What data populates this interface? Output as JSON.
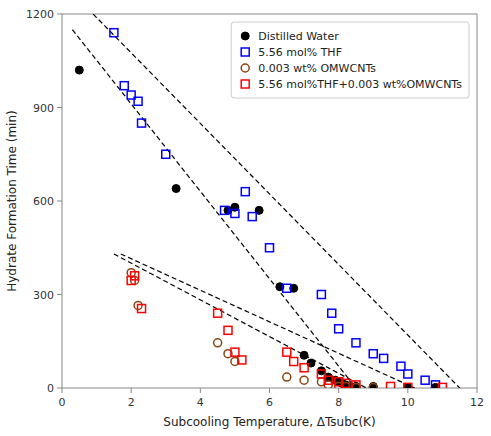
{
  "chart_data": {
    "type": "scatter",
    "title": "",
    "xlabel": "Subcooling Temperature, ΔTsubc(K)",
    "ylabel": "Hydrate Formation Time (min)",
    "xlim": [
      0,
      12
    ],
    "ylim": [
      0,
      1200
    ],
    "xticks": [
      0,
      2,
      4,
      6,
      8,
      10,
      12
    ],
    "yticks": [
      0,
      300,
      600,
      900,
      1200
    ],
    "grid": false,
    "legend": "upper-right",
    "series": [
      {
        "name": "Distilled Water",
        "color": "#000000",
        "marker": "filled-circle",
        "x": [
          0.5,
          3.3,
          4.8,
          5.0,
          5.7,
          6.3,
          6.7,
          7.0,
          7.2,
          7.5,
          7.7,
          7.9,
          8.0,
          8.1,
          8.2,
          8.3,
          8.5,
          9.0,
          10.0,
          10.8
        ],
        "values": [
          1020,
          640,
          570,
          580,
          570,
          325,
          320,
          105,
          80,
          55,
          35,
          25,
          20,
          15,
          10,
          5,
          5,
          5,
          2,
          2
        ],
        "trend_x": [
          0.3,
          8.5
        ],
        "trend_y": [
          1150,
          0
        ]
      },
      {
        "name": "5.56 mol% THF",
        "color": "#0000FF",
        "marker": "open-square",
        "x": [
          1.5,
          1.8,
          2.0,
          2.2,
          2.3,
          3.0,
          4.7,
          5.0,
          5.3,
          5.5,
          6.0,
          6.5,
          7.5,
          7.8,
          8.0,
          8.5,
          9.0,
          9.3,
          9.8,
          10.0,
          10.5,
          10.8
        ],
        "values": [
          1140,
          970,
          940,
          920,
          850,
          750,
          570,
          560,
          630,
          550,
          450,
          320,
          300,
          240,
          190,
          145,
          110,
          95,
          70,
          45,
          25,
          10
        ],
        "trend_x": [
          0.9,
          11.5
        ],
        "trend_y": [
          1200,
          0
        ]
      },
      {
        "name": "0.003 wt% OMWCNTs",
        "color": "#8B4513",
        "marker": "open-circle",
        "x": [
          2.0,
          2.1,
          2.2,
          4.5,
          4.8,
          5.0,
          6.5,
          7.0,
          7.5,
          7.7,
          8.0,
          8.2,
          8.5,
          9.0
        ],
        "values": [
          370,
          345,
          265,
          145,
          110,
          85,
          35,
          25,
          20,
          10,
          5,
          5,
          2,
          2
        ],
        "trend_x": [
          1.5,
          8.8
        ],
        "trend_y": [
          430,
          0
        ]
      },
      {
        "name": "5.56 mol%THF+0.003 wt%OMWCNTs",
        "color": "#FF0000",
        "marker": "open-square",
        "x": [
          2.0,
          2.1,
          2.3,
          4.5,
          4.8,
          5.0,
          5.2,
          6.5,
          6.7,
          7.0,
          7.5,
          7.7,
          8.0,
          8.2,
          8.5,
          9.5,
          10.0,
          11.0
        ],
        "values": [
          345,
          360,
          255,
          240,
          185,
          115,
          90,
          115,
          85,
          65,
          45,
          25,
          20,
          15,
          10,
          5,
          2,
          2
        ],
        "trend_x": [
          1.7,
          10.2
        ],
        "trend_y": [
          430,
          0
        ]
      }
    ]
  }
}
